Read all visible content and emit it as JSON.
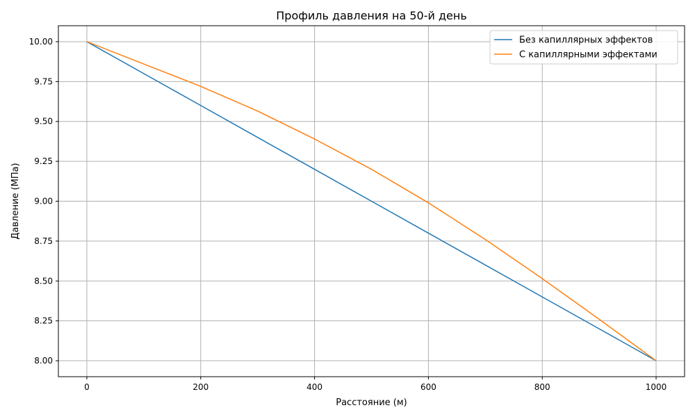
{
  "chart_data": {
    "type": "line",
    "title": "Профиль давления на 50-й день",
    "xlabel": "Расстояние (м)",
    "ylabel": "Давление (МПа)",
    "xlim": [
      -50,
      1050
    ],
    "ylim": [
      7.9,
      10.1
    ],
    "xticks": [
      0,
      200,
      400,
      600,
      800,
      1000
    ],
    "xtick_labels": [
      "0",
      "200",
      "400",
      "600",
      "800",
      "1000"
    ],
    "yticks": [
      8.0,
      8.25,
      8.5,
      8.75,
      9.0,
      9.25,
      9.5,
      9.75,
      10.0
    ],
    "ytick_labels": [
      "8.00",
      "8.25",
      "8.50",
      "8.75",
      "9.00",
      "9.25",
      "9.50",
      "9.75",
      "10.00"
    ],
    "grid": true,
    "legend_position": "top-right",
    "series": [
      {
        "name": "Без капиллярных эффектов",
        "color": "#1f77b4",
        "x": [
          0,
          100,
          200,
          300,
          400,
          500,
          600,
          700,
          800,
          900,
          1000
        ],
        "y": [
          10.0,
          9.8,
          9.6,
          9.4,
          9.2,
          9.0,
          8.8,
          8.6,
          8.4,
          8.2,
          8.0
        ]
      },
      {
        "name": "С капиллярными эффектами",
        "color": "#ff7f0e",
        "x": [
          0,
          100,
          200,
          300,
          400,
          500,
          600,
          700,
          800,
          900,
          1000
        ],
        "y": [
          10.0,
          9.86,
          9.72,
          9.565,
          9.39,
          9.2,
          8.99,
          8.76,
          8.515,
          8.26,
          8.0
        ]
      }
    ]
  }
}
